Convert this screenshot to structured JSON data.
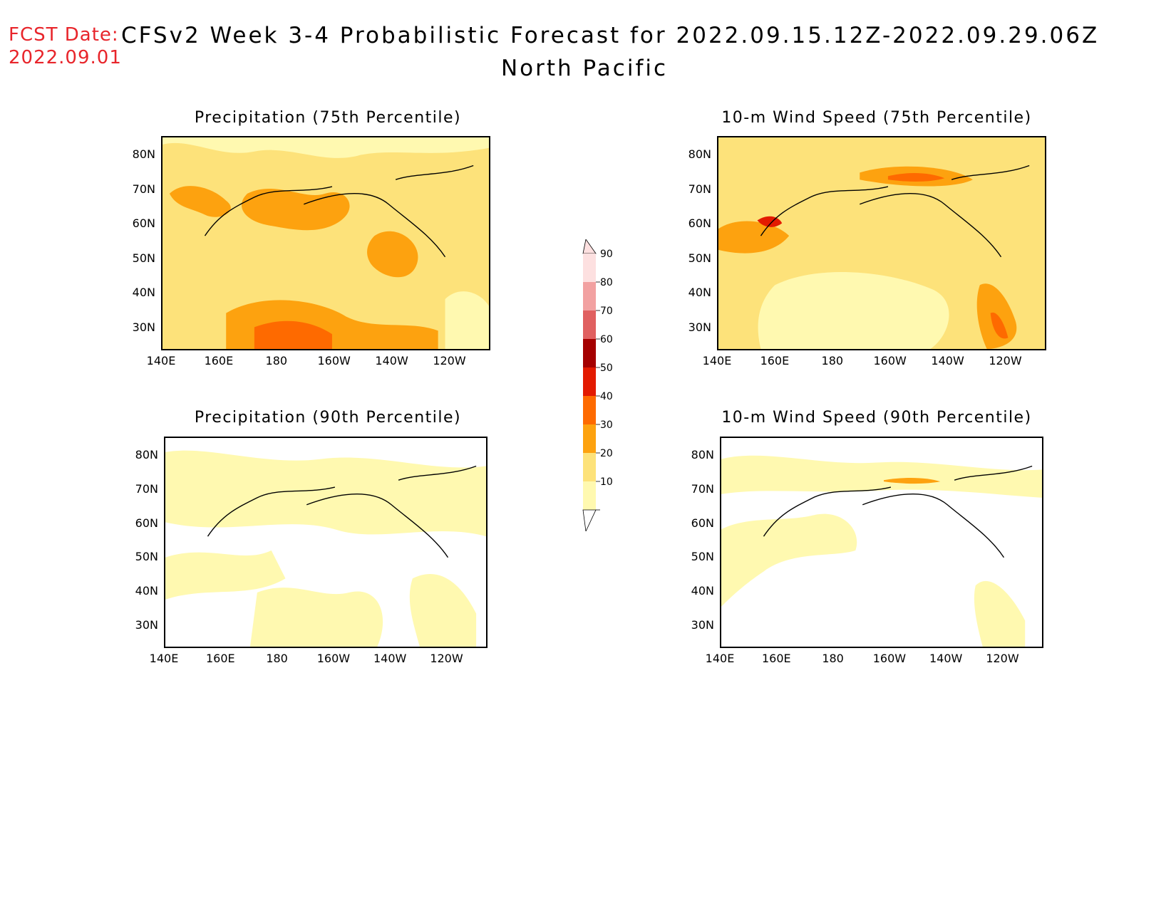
{
  "header": {
    "fcst_label": "FCST Date:",
    "fcst_date": "2022.09.01",
    "title": "CFSv2 Week 3-4 Probabilistic Forecast for 2022.09.15.12Z-2022.09.29.06Z",
    "region": "North Pacific"
  },
  "axes": {
    "lat_ticks": [
      "80N",
      "70N",
      "60N",
      "50N",
      "40N",
      "30N"
    ],
    "lon_ticks": [
      "140E",
      "160E",
      "180",
      "160W",
      "140W",
      "120W"
    ]
  },
  "panels": [
    {
      "title": "Precipitation (75th Percentile)",
      "fill_level": 2
    },
    {
      "title": "10-m Wind Speed (75th Percentile)",
      "fill_level": 2
    },
    {
      "title": "Precipitation (90th Percentile)",
      "fill_level": 1
    },
    {
      "title": "10-m Wind Speed (90th Percentile)",
      "fill_level": 1
    }
  ],
  "colorbar": {
    "levels": [
      "10",
      "20",
      "30",
      "40",
      "50",
      "60",
      "70",
      "80",
      "90"
    ],
    "colors": [
      "#fff9b0",
      "#fde27a",
      "#fda20f",
      "#fe6a00",
      "#e31a00",
      "#a50000",
      "#e06060",
      "#f2a1a1",
      "#fde0e0"
    ]
  }
}
